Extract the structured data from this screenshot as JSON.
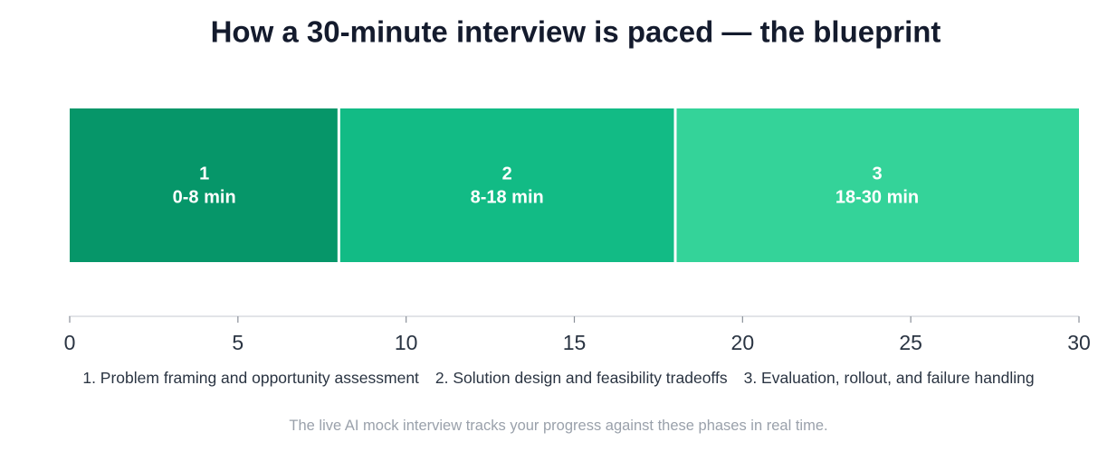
{
  "chart_data": {
    "type": "timeline",
    "title": "How a 30-minute interview is paced — the blueprint",
    "segments": [
      {
        "label": "1",
        "name": "1. Problem framing and opportunity assessment",
        "start": 0,
        "end": 8,
        "range_label": "0-8 min",
        "color": "#069669"
      },
      {
        "label": "2",
        "name": "2. Solution design and feasibility tradeoffs",
        "start": 8,
        "end": 18,
        "range_label": "8-18 min",
        "color": "#12bb85"
      },
      {
        "label": "3",
        "name": "3. Evaluation, rollout, and failure handling",
        "start": 18,
        "end": 30,
        "range_label": "18-30 min",
        "color": "#34d399"
      }
    ],
    "xlim": [
      0,
      30
    ],
    "xticks": [
      0,
      5,
      10,
      15,
      20,
      25,
      30
    ],
    "footnote": "The live AI mock interview tracks your progress against these phases in real time."
  }
}
